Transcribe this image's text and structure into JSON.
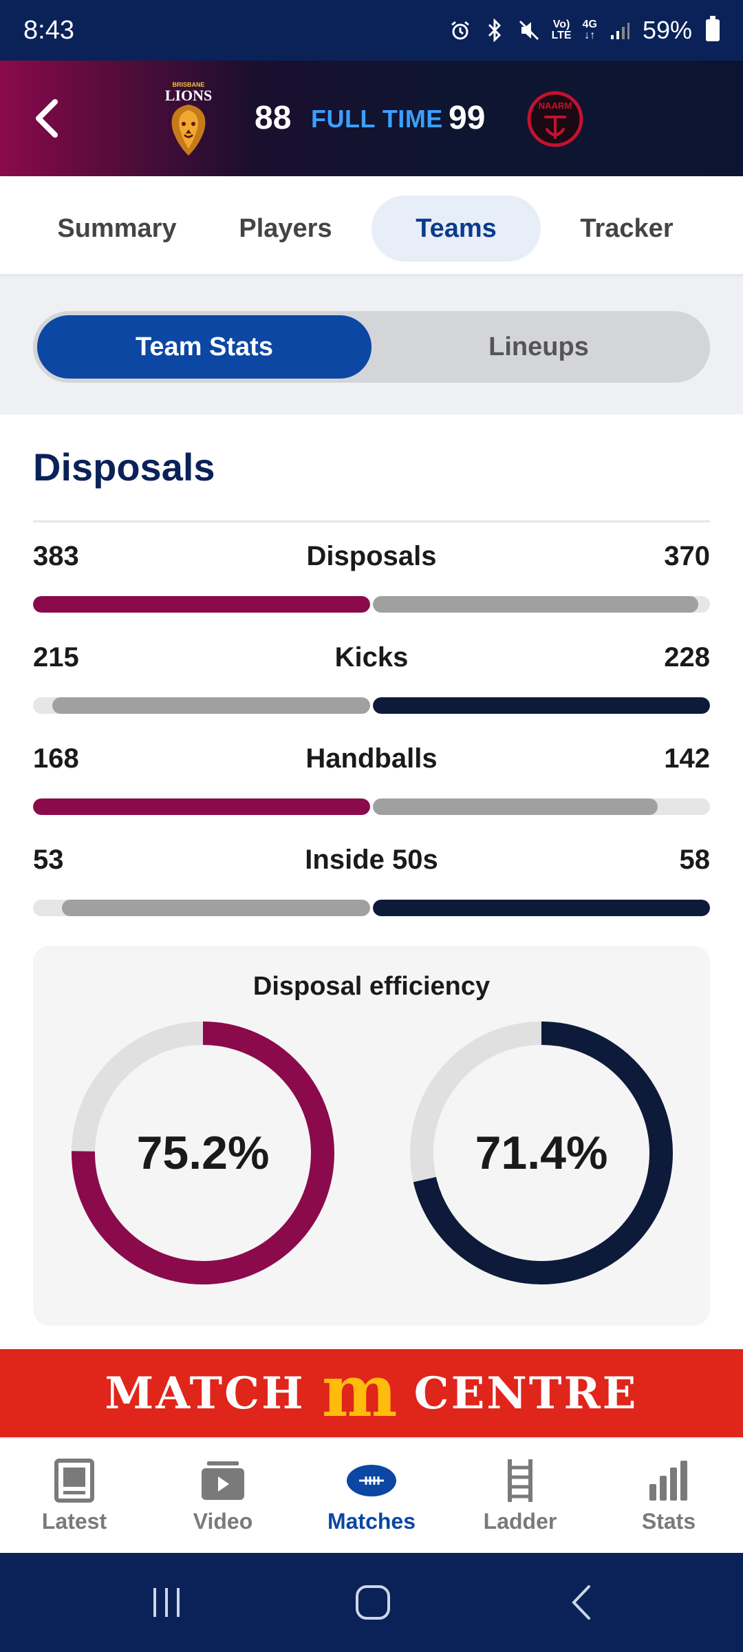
{
  "status_bar": {
    "time": "8:43",
    "battery": "59%",
    "network_top": "Vo)",
    "network_bottom": "LTE",
    "signal_label": "4G"
  },
  "match": {
    "home_team": "Brisbane Lions",
    "home_logo_text_top": "BRISBANE",
    "home_logo_text": "LIONS",
    "away_logo_text": "NAARM",
    "home_score": "88",
    "away_score": "99",
    "status": "FULL TIME"
  },
  "tabs": [
    {
      "label": "Summary",
      "active": false
    },
    {
      "label": "Players",
      "active": false
    },
    {
      "label": "Teams",
      "active": true
    },
    {
      "label": "Tracker",
      "active": false
    }
  ],
  "toggle": {
    "team_stats": "Team Stats",
    "lineups": "Lineups",
    "active": "Team Stats"
  },
  "section": {
    "title": "Disposals"
  },
  "stats": [
    {
      "label": "Disposals",
      "home": "383",
      "away": "370",
      "leader": "home"
    },
    {
      "label": "Kicks",
      "home": "215",
      "away": "228",
      "leader": "away"
    },
    {
      "label": "Handballs",
      "home": "168",
      "away": "142",
      "leader": "home"
    },
    {
      "label": "Inside 50s",
      "home": "53",
      "away": "58",
      "leader": "away"
    }
  ],
  "efficiency": {
    "title": "Disposal efficiency",
    "home_value": "75.2%",
    "away_value": "71.4%",
    "home_fraction": 0.752,
    "away_fraction": 0.714
  },
  "banner": {
    "left": "MATCH",
    "arches": "m",
    "right": "CENTRE"
  },
  "bottom_nav": [
    {
      "label": "Latest",
      "icon": "news-icon",
      "active": false
    },
    {
      "label": "Video",
      "icon": "video-icon",
      "active": false
    },
    {
      "label": "Matches",
      "icon": "football-icon",
      "active": true
    },
    {
      "label": "Ladder",
      "icon": "ladder-icon",
      "active": false
    },
    {
      "label": "Stats",
      "icon": "bar-chart-icon",
      "active": false
    }
  ],
  "colors": {
    "home_primary": "#8b0a4c",
    "away_primary": "#0d1a3a",
    "neutral_bar": "#a0a0a0",
    "track": "#e6e6e6",
    "accent_blue": "#0b47a3",
    "score_status": "#3aa0ff",
    "banner_red": "#e0251b",
    "banner_yellow": "#ffbc0d"
  }
}
